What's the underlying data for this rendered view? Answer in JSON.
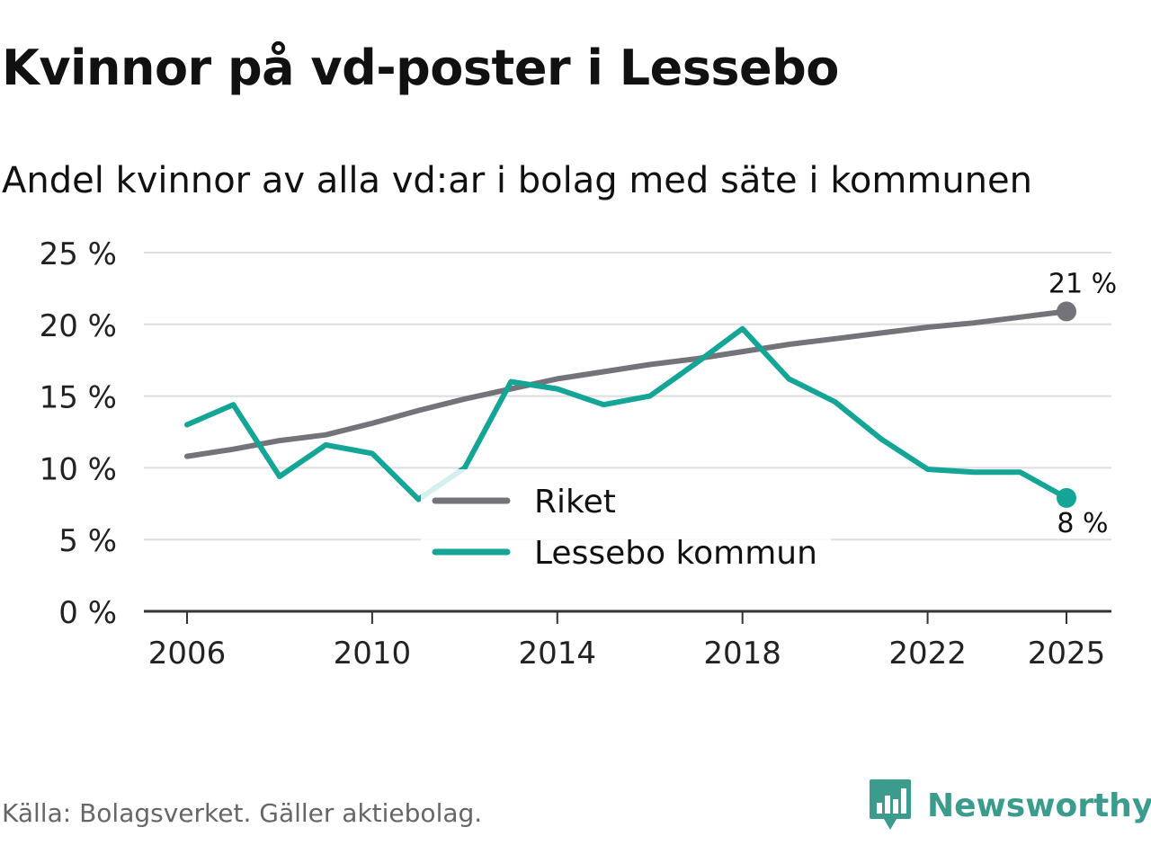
{
  "title": "Kvinnor på vd-poster i Lessebo",
  "subtitle": "Andel kvinnor av alla vd:ar i bolag med säte i kommunen",
  "source": "Källa: Bolagsverket. Gäller aktiebolag.",
  "brand": {
    "name": "Newsworthy",
    "icon": "newsworthy-logo-icon",
    "color": "#3b9b8c"
  },
  "colors": {
    "riket": "#75737a",
    "lessebo": "#14a596",
    "grid": "#dedede",
    "axis": "#333333"
  },
  "chart_data": {
    "type": "line",
    "title": "Kvinnor på vd-poster i Lessebo",
    "subtitle": "Andel kvinnor av alla vd:ar i bolag med säte i kommunen",
    "xlabel": "",
    "ylabel": "",
    "x": [
      2006,
      2007,
      2008,
      2009,
      2010,
      2011,
      2012,
      2013,
      2014,
      2015,
      2016,
      2017,
      2018,
      2019,
      2020,
      2021,
      2022,
      2023,
      2024,
      2025
    ],
    "xlim": [
      2006,
      2025
    ],
    "ylim": [
      0,
      25
    ],
    "x_ticks": [
      2006,
      2010,
      2014,
      2018,
      2022,
      2025
    ],
    "x_tick_labels": [
      "2006",
      "2010",
      "2014",
      "2018",
      "2022",
      "2025"
    ],
    "y_ticks": [
      0,
      5,
      10,
      15,
      20,
      25
    ],
    "y_tick_labels": [
      "0 %",
      "5 %",
      "10 %",
      "15 %",
      "20 %",
      "25 %"
    ],
    "grid": true,
    "legend": "center",
    "series": [
      {
        "name": "Riket",
        "color": "#75737a",
        "values": [
          10.8,
          11.3,
          11.9,
          12.3,
          13.1,
          14.0,
          14.8,
          15.5,
          16.2,
          16.7,
          17.2,
          17.6,
          18.1,
          18.6,
          19.0,
          19.4,
          19.8,
          20.1,
          20.5,
          20.9
        ],
        "end_label": "21 %"
      },
      {
        "name": "Lessebo kommun",
        "color": "#14a596",
        "values": [
          13.0,
          14.4,
          9.4,
          11.6,
          11.0,
          7.8,
          10.0,
          16.0,
          15.5,
          14.4,
          15.0,
          17.3,
          19.7,
          16.2,
          14.6,
          12.0,
          9.9,
          9.7,
          9.7,
          7.9
        ],
        "end_label": "8 %"
      }
    ]
  }
}
